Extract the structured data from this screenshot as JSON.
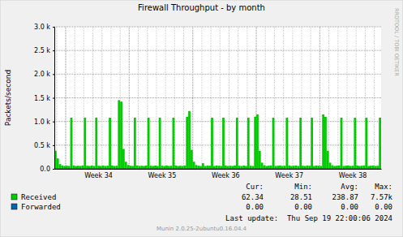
{
  "chart_data": {
    "type": "bar",
    "title": "Firewall Throughput - by month",
    "y_label": "Packets/second",
    "watermark": "RRDTOOL / TOBI OETIKER",
    "last_update": "Last update:  Thu Sep 19 22:00:06 2024",
    "footer": "Munin 2.0.25-2ubuntu0.16.04.4",
    "grid": true,
    "legend": "bottom",
    "summary_labels": [
      "Cur:",
      "Min:",
      "Avg:",
      "Max:"
    ],
    "categories": [
      null,
      null,
      null,
      null,
      null,
      null,
      null,
      null,
      null,
      null,
      null,
      null,
      null,
      null,
      null,
      null,
      null,
      null,
      null,
      "Week 34",
      null,
      null,
      null,
      null,
      null,
      null,
      null,
      null,
      null,
      null,
      null,
      null,
      null,
      null,
      null,
      null,
      null,
      null,
      null,
      null,
      null,
      null,
      null,
      null,
      null,
      null,
      null,
      "Week 35",
      null,
      null,
      null,
      null,
      null,
      null,
      null,
      null,
      null,
      null,
      null,
      null,
      null,
      null,
      null,
      null,
      null,
      null,
      null,
      null,
      null,
      null,
      null,
      null,
      null,
      null,
      null,
      "Week 36",
      null,
      null,
      null,
      null,
      null,
      null,
      null,
      null,
      null,
      null,
      null,
      null,
      null,
      null,
      null,
      null,
      null,
      null,
      null,
      null,
      null,
      null,
      null,
      null,
      null,
      null,
      null,
      "Week 37",
      null,
      null,
      null,
      null,
      null,
      null,
      null,
      null,
      null,
      null,
      null,
      null,
      null,
      null,
      null,
      null,
      null,
      null,
      null,
      null,
      null,
      null,
      null,
      null,
      null,
      null,
      null,
      "Week 38",
      null,
      null,
      null,
      null,
      null,
      null,
      null,
      null,
      null,
      null,
      null,
      null
    ],
    "ylim": [
      0,
      3000
    ],
    "yticks": [
      {
        "value": 0,
        "label": "0.0"
      },
      {
        "value": 500,
        "label": "0.5 k"
      },
      {
        "value": 1000,
        "label": "1.0 k"
      },
      {
        "value": 1500,
        "label": "1.5 k"
      },
      {
        "value": 2000,
        "label": "2.0 k"
      },
      {
        "value": 2500,
        "label": "2.5 k"
      },
      {
        "value": 3000,
        "label": "3.0 k"
      }
    ],
    "series": [
      {
        "name": "Received",
        "color": "#00cc00",
        "type": "bar",
        "summary": [
          62.34,
          28.51,
          238.87,
          {
            "value": 7570,
            "label": "7.57k"
          }
        ],
        "values": [
          380,
          220,
          100,
          70,
          60,
          65,
          60,
          1080,
          70,
          60,
          65,
          60,
          70,
          1080,
          65,
          60,
          70,
          60,
          1080,
          65,
          60,
          70,
          60,
          65,
          1080,
          70,
          60,
          65,
          1450,
          1420,
          420,
          150,
          80,
          65,
          60,
          1080,
          70,
          60,
          65,
          60,
          70,
          1080,
          65,
          60,
          70,
          60,
          1080,
          65,
          60,
          70,
          60,
          65,
          1080,
          70,
          60,
          65,
          60,
          70,
          1100,
          1220,
          400,
          150,
          80,
          65,
          60,
          120,
          60,
          70,
          65,
          1080,
          60,
          70,
          65,
          60,
          1080,
          70,
          60,
          65,
          60,
          70,
          1080,
          65,
          60,
          70,
          60,
          1080,
          65,
          60,
          1100,
          1150,
          380,
          130,
          75,
          60,
          65,
          70,
          1080,
          60,
          65,
          70,
          60,
          65,
          1080,
          70,
          60,
          65,
          70,
          60,
          1080,
          65,
          60,
          70,
          65,
          1080,
          60,
          70,
          65,
          60,
          1150,
          1100,
          380,
          130,
          75,
          60,
          65,
          70,
          1080,
          60,
          65,
          70,
          60,
          65,
          1080,
          70,
          60,
          65,
          70,
          1080,
          60,
          65,
          70,
          60,
          65,
          1080
        ]
      },
      {
        "name": "Forwarded",
        "color": "#0066b3",
        "type": "line",
        "summary": [
          {
            "value": 0,
            "label": "0.00"
          },
          {
            "value": 0,
            "label": "0.00"
          },
          {
            "value": 0,
            "label": "0.00"
          },
          {
            "value": 0,
            "label": "0.00"
          }
        ],
        "values": [
          0,
          0,
          0,
          0,
          0,
          0,
          0,
          0,
          0,
          0,
          0,
          0,
          0,
          0,
          0,
          0,
          0,
          0,
          0,
          0,
          0,
          0,
          0,
          0,
          0,
          0,
          0,
          0,
          0,
          0,
          0,
          0,
          0,
          0,
          0,
          0,
          0,
          0,
          0,
          0,
          0,
          0,
          0,
          0,
          0,
          0,
          0,
          0,
          0,
          0,
          0,
          0,
          0,
          0,
          0,
          0,
          0,
          0,
          0,
          0,
          0,
          0,
          0,
          0,
          0,
          0,
          0,
          0,
          0,
          0,
          0,
          0,
          0,
          0,
          0,
          0,
          0,
          0,
          0,
          0,
          0,
          0,
          0,
          0,
          0,
          0,
          0,
          0,
          0,
          0,
          0,
          0,
          0,
          0,
          0,
          0,
          0,
          0,
          0,
          0,
          0,
          0,
          0,
          0,
          0,
          0,
          0,
          0,
          0,
          0,
          0,
          0,
          0,
          0,
          0,
          0,
          0,
          0,
          0,
          0,
          0,
          0,
          0,
          0,
          0,
          0,
          0,
          0,
          0,
          0,
          0,
          0,
          0,
          0,
          0,
          0,
          0,
          0,
          0,
          0,
          0,
          0,
          0,
          0
        ]
      }
    ]
  }
}
